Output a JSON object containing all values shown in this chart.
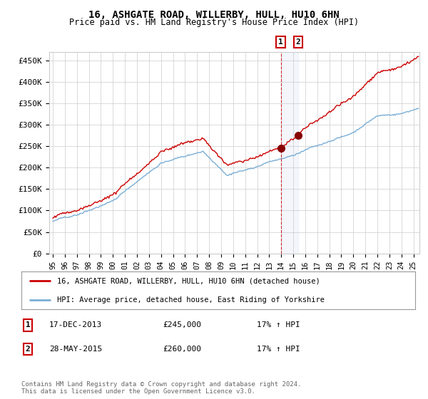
{
  "title": "16, ASHGATE ROAD, WILLERBY, HULL, HU10 6HN",
  "subtitle": "Price paid vs. HM Land Registry's House Price Index (HPI)",
  "ylabel_ticks": [
    "£0",
    "£50K",
    "£100K",
    "£150K",
    "£200K",
    "£250K",
    "£300K",
    "£350K",
    "£400K",
    "£450K"
  ],
  "ytick_values": [
    0,
    50000,
    100000,
    150000,
    200000,
    250000,
    300000,
    350000,
    400000,
    450000
  ],
  "ylim": [
    0,
    470000
  ],
  "xlim_start": 1994.7,
  "xlim_end": 2025.5,
  "legend1_label": "16, ASHGATE ROAD, WILLERBY, HULL, HU10 6HN (detached house)",
  "legend2_label": "HPI: Average price, detached house, East Riding of Yorkshire",
  "legend1_color": "#cc0000",
  "legend2_color": "#7aaed6",
  "transaction1_price_val": 245000,
  "transaction2_price_val": 260000,
  "transaction1_date": "17-DEC-2013",
  "transaction1_price": "£245,000",
  "transaction1_hpi": "17% ↑ HPI",
  "transaction2_date": "28-MAY-2015",
  "transaction2_price": "£260,000",
  "transaction2_hpi": "17% ↑ HPI",
  "footnote": "Contains HM Land Registry data © Crown copyright and database right 2024.\nThis data is licensed under the Open Government Licence v3.0.",
  "title_fontsize": 10,
  "subtitle_fontsize": 8.5,
  "background_color": "#ffffff",
  "grid_color": "#cccccc",
  "vline1_x": 2013.96,
  "vline2_x": 2015.41
}
